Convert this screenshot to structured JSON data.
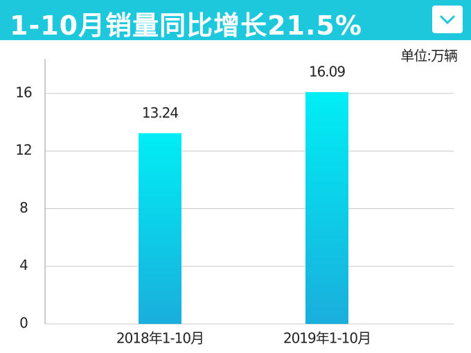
{
  "chart_data": {
    "type": "bar",
    "title": "1-10月销量同比增长21.5%",
    "unit": "单位:万辆",
    "categories": [
      "2018年1-10月",
      "2019年1-10月"
    ],
    "values": [
      13.24,
      16.09
    ],
    "gradient": [
      "#00eef5",
      "#1aaedc"
    ],
    "ylim": [
      0,
      18.4
    ],
    "yticks": [
      0,
      4,
      8,
      12,
      16
    ],
    "grid": true
  }
}
